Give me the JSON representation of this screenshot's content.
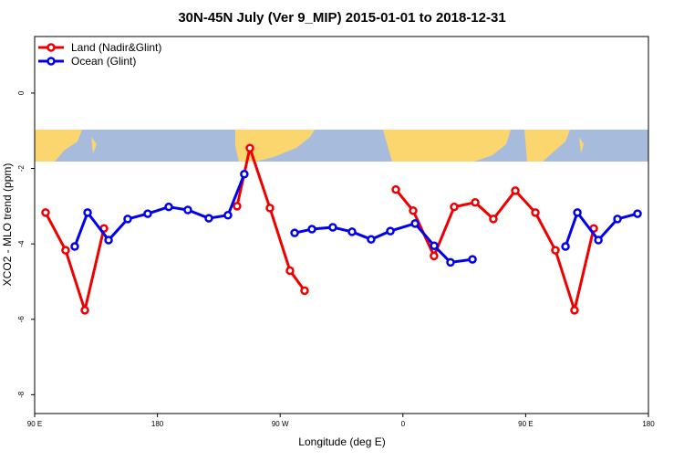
{
  "chart_data": {
    "type": "line",
    "title": "30N-45N July (Ver 9_MIP)   2015-01-01 to 2018-12-31",
    "x_label": "Longitude (deg E)",
    "y_label": "XCO2 - MLO trend (ppm)",
    "xlim": [
      90,
      540
    ],
    "ylim": [
      -8.5,
      1.5
    ],
    "xticks": [
      {
        "value": 90,
        "label": "90 E"
      },
      180,
      {
        "value": 270,
        "label": "90 W"
      },
      {
        "value": 360,
        "label": "0"
      },
      {
        "value": 450,
        "label": "90 E"
      },
      {
        "value": 540,
        "label": "180"
      }
    ],
    "yticks": [
      0,
      -2,
      -4,
      -6,
      -8
    ],
    "legend": "top-left",
    "series": [
      {
        "name": "Land (Nadir&Glint)",
        "color": "#ee0000",
        "x": [
          98.0,
          112.7,
          126.8,
          140.8,
          null,
          238.4,
          247.8,
          262.5,
          277.2,
          287.9,
          null,
          354.8,
          367.5,
          382.8,
          397.6,
          413.0,
          426.3,
          442.4,
          457.1,
          471.8,
          485.8,
          499.9
        ],
        "values": [
          -3.17,
          -4.17,
          -5.76,
          -3.59,
          null,
          -3.0,
          -1.46,
          -3.05,
          -4.71,
          -5.24,
          null,
          -2.56,
          -3.12,
          -4.32,
          -3.02,
          -2.9,
          -3.34,
          -2.59,
          -3.17,
          -4.17,
          -5.76,
          -3.59
        ]
      },
      {
        "name": "Ocean (Glint)",
        "color": "#0000ee",
        "x": [
          119.4,
          128.8,
          144.2,
          158.2,
          172.9,
          188.3,
          202.3,
          217.7,
          231.7,
          243.7,
          null,
          280.6,
          293.3,
          308.6,
          322.7,
          336.7,
          350.8,
          368.9,
          382.9,
          394.9,
          411.0,
          null,
          479.2,
          487.9,
          503.3,
          517.3,
          532.0
        ],
        "values": [
          -4.07,
          -3.17,
          -3.9,
          -3.34,
          -3.2,
          -3.02,
          -3.1,
          -3.32,
          -3.24,
          -2.15,
          null,
          -3.71,
          -3.61,
          -3.56,
          -3.68,
          -3.88,
          -3.66,
          -3.46,
          -4.05,
          -4.49,
          -4.41,
          null,
          -4.07,
          -3.17,
          -3.9,
          -3.34,
          -3.2
        ]
      }
    ]
  }
}
